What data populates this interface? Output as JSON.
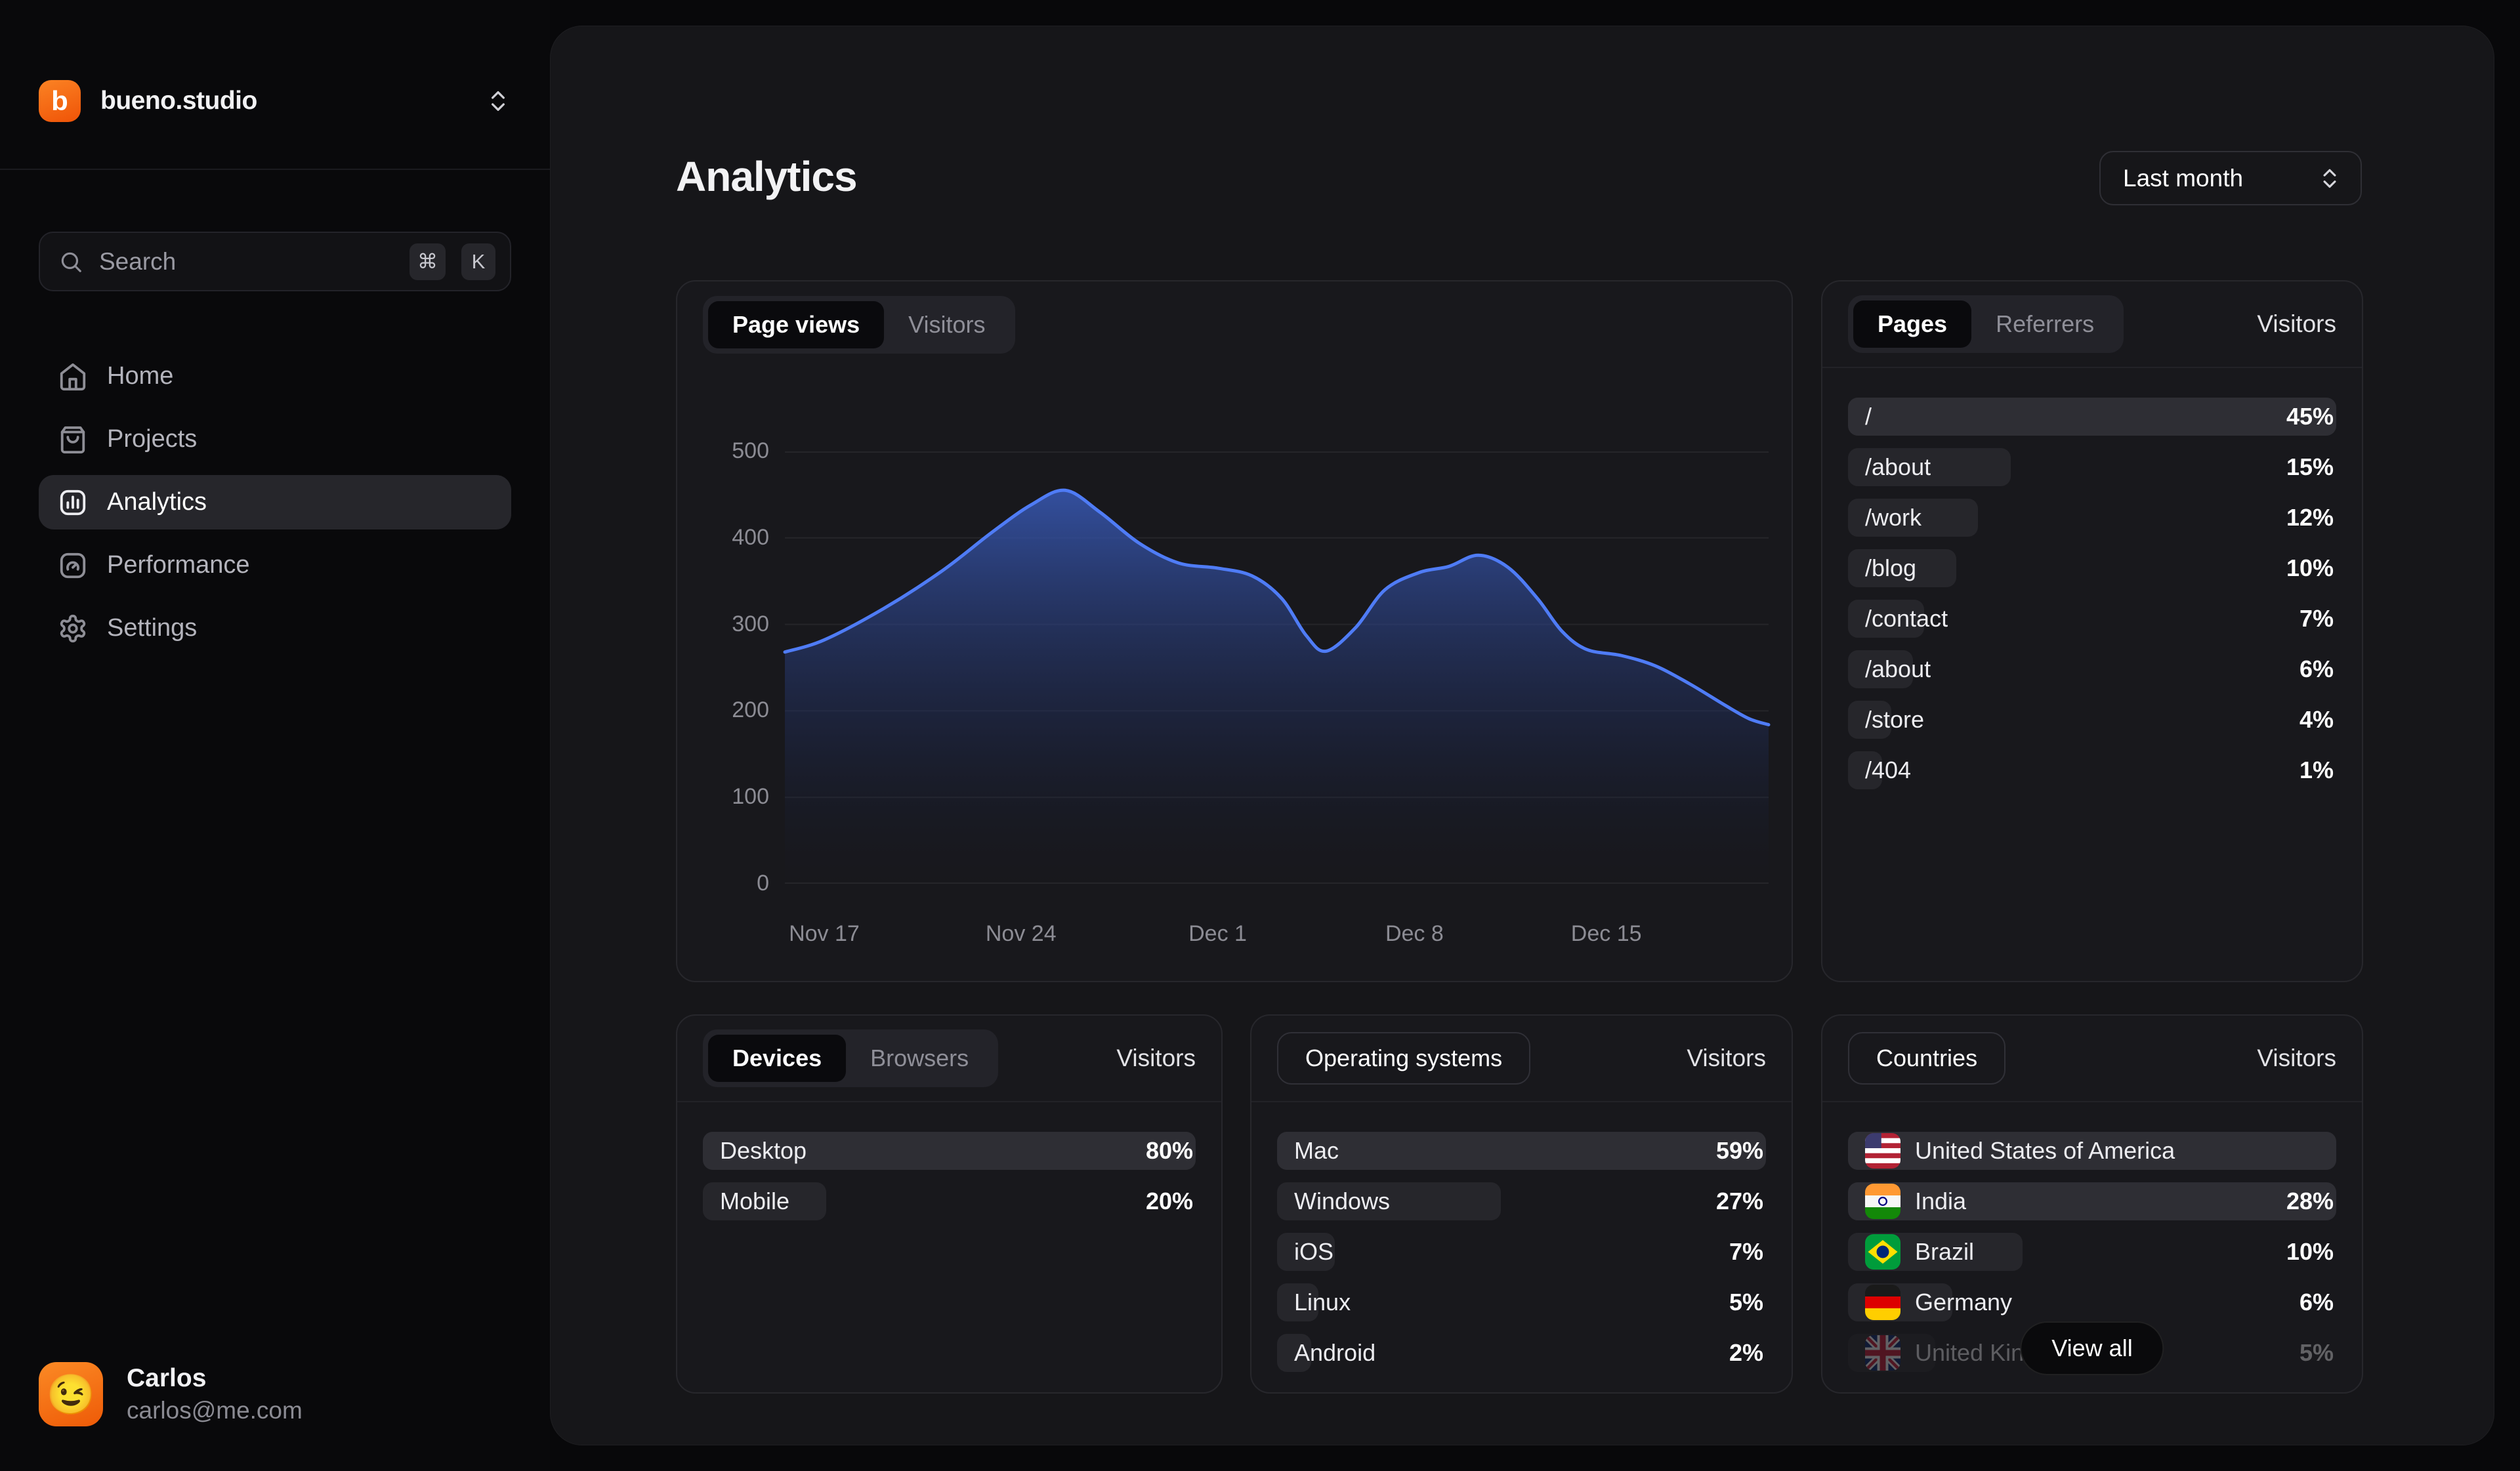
{
  "sidebar": {
    "workspace": "bueno.studio",
    "workspace_initial": "b",
    "search": {
      "placeholder": "Search",
      "shortcut_mod": "⌘",
      "shortcut_key": "K"
    },
    "nav": [
      {
        "id": "home",
        "label": "Home",
        "icon": "home-icon",
        "active": false
      },
      {
        "id": "projects",
        "label": "Projects",
        "icon": "bag-icon",
        "active": false
      },
      {
        "id": "analytics",
        "label": "Analytics",
        "icon": "bar-chart-icon",
        "active": true
      },
      {
        "id": "performance",
        "label": "Performance",
        "icon": "gauge-icon",
        "active": false
      },
      {
        "id": "settings",
        "label": "Settings",
        "icon": "gear-icon",
        "active": false
      }
    ],
    "user": {
      "name": "Carlos",
      "email": "carlos@me.com",
      "avatar_emoji": "😉"
    }
  },
  "header": {
    "title": "Analytics",
    "range_selector": "Last month"
  },
  "cards": {
    "traffic": {
      "tabs": [
        {
          "label": "Page views",
          "active": true
        },
        {
          "label": "Visitors",
          "active": false
        }
      ]
    },
    "pages": {
      "tabs": [
        {
          "label": "Pages",
          "active": true
        },
        {
          "label": "Referrers",
          "active": false
        }
      ],
      "value_header": "Visitors",
      "rows": [
        {
          "label": "/",
          "value": 45,
          "display": "45%"
        },
        {
          "label": "/about",
          "value": 15,
          "display": "15%"
        },
        {
          "label": "/work",
          "value": 12,
          "display": "12%"
        },
        {
          "label": "/blog",
          "value": 10,
          "display": "10%"
        },
        {
          "label": "/contact",
          "value": 7,
          "display": "7%"
        },
        {
          "label": "/about",
          "value": 6,
          "display": "6%"
        },
        {
          "label": "/store",
          "value": 4,
          "display": "4%"
        },
        {
          "label": "/404",
          "value": 1,
          "display": "1%"
        }
      ]
    },
    "devices": {
      "tabs": [
        {
          "label": "Devices",
          "active": true
        },
        {
          "label": "Browsers",
          "active": false
        }
      ],
      "value_header": "Visitors",
      "rows": [
        {
          "label": "Desktop",
          "value": 80,
          "display": "80%"
        },
        {
          "label": "Mobile",
          "value": 20,
          "display": "20%"
        }
      ]
    },
    "os": {
      "header": "Operating systems",
      "value_header": "Visitors",
      "rows": [
        {
          "label": "Mac",
          "value": 59,
          "display": "59%"
        },
        {
          "label": "Windows",
          "value": 27,
          "display": "27%"
        },
        {
          "label": "iOS",
          "value": 7,
          "display": "7%"
        },
        {
          "label": "Linux",
          "value": 5,
          "display": "5%"
        },
        {
          "label": "Android",
          "value": 2,
          "display": "2%"
        }
      ]
    },
    "countries": {
      "header": "Countries",
      "value_header": "Visitors",
      "view_all": "View all",
      "rows": [
        {
          "label": "United States of America",
          "flag": "us",
          "value": null,
          "display": ""
        },
        {
          "label": "India",
          "flag": "in",
          "value": 28,
          "display": "28%"
        },
        {
          "label": "Brazil",
          "flag": "br",
          "value": 10,
          "display": "10%"
        },
        {
          "label": "Germany",
          "flag": "de",
          "value": 6,
          "display": "6%"
        },
        {
          "label": "United Kingdom",
          "flag": "gb",
          "value": 5,
          "display": "5%",
          "dimmed": true
        }
      ]
    }
  },
  "chart_data": {
    "type": "area",
    "series_name": "Page views",
    "ylabel": "",
    "xlabel": "",
    "ylim": [
      0,
      500
    ],
    "y_ticks": [
      0,
      100,
      200,
      300,
      400,
      500
    ],
    "grid": "horizontal",
    "line_color": "#4f7cf6",
    "fill_top_color": "rgba(56,89,181,0.85)",
    "fill_bottom_color": "rgba(20,24,40,0.03)",
    "x_ticks": [
      {
        "label": "Nov 17",
        "pos": 0.04
      },
      {
        "label": "Nov 24",
        "pos": 0.24
      },
      {
        "label": "Dec 1",
        "pos": 0.44
      },
      {
        "label": "Dec 8",
        "pos": 0.64
      },
      {
        "label": "Dec 15",
        "pos": 0.835
      }
    ],
    "points": [
      {
        "x": 0.0,
        "y": 268
      },
      {
        "x": 0.04,
        "y": 282
      },
      {
        "x": 0.1,
        "y": 318
      },
      {
        "x": 0.16,
        "y": 362
      },
      {
        "x": 0.21,
        "y": 406
      },
      {
        "x": 0.25,
        "y": 438
      },
      {
        "x": 0.285,
        "y": 455
      },
      {
        "x": 0.32,
        "y": 430
      },
      {
        "x": 0.36,
        "y": 394
      },
      {
        "x": 0.4,
        "y": 371
      },
      {
        "x": 0.44,
        "y": 365
      },
      {
        "x": 0.475,
        "y": 356
      },
      {
        "x": 0.505,
        "y": 330
      },
      {
        "x": 0.53,
        "y": 287
      },
      {
        "x": 0.55,
        "y": 269
      },
      {
        "x": 0.58,
        "y": 296
      },
      {
        "x": 0.61,
        "y": 340
      },
      {
        "x": 0.645,
        "y": 360
      },
      {
        "x": 0.675,
        "y": 367
      },
      {
        "x": 0.705,
        "y": 380
      },
      {
        "x": 0.735,
        "y": 366
      },
      {
        "x": 0.765,
        "y": 330
      },
      {
        "x": 0.79,
        "y": 292
      },
      {
        "x": 0.815,
        "y": 271
      },
      {
        "x": 0.85,
        "y": 264
      },
      {
        "x": 0.885,
        "y": 252
      },
      {
        "x": 0.92,
        "y": 231
      },
      {
        "x": 0.955,
        "y": 207
      },
      {
        "x": 0.98,
        "y": 191
      },
      {
        "x": 1.0,
        "y": 184
      }
    ]
  }
}
